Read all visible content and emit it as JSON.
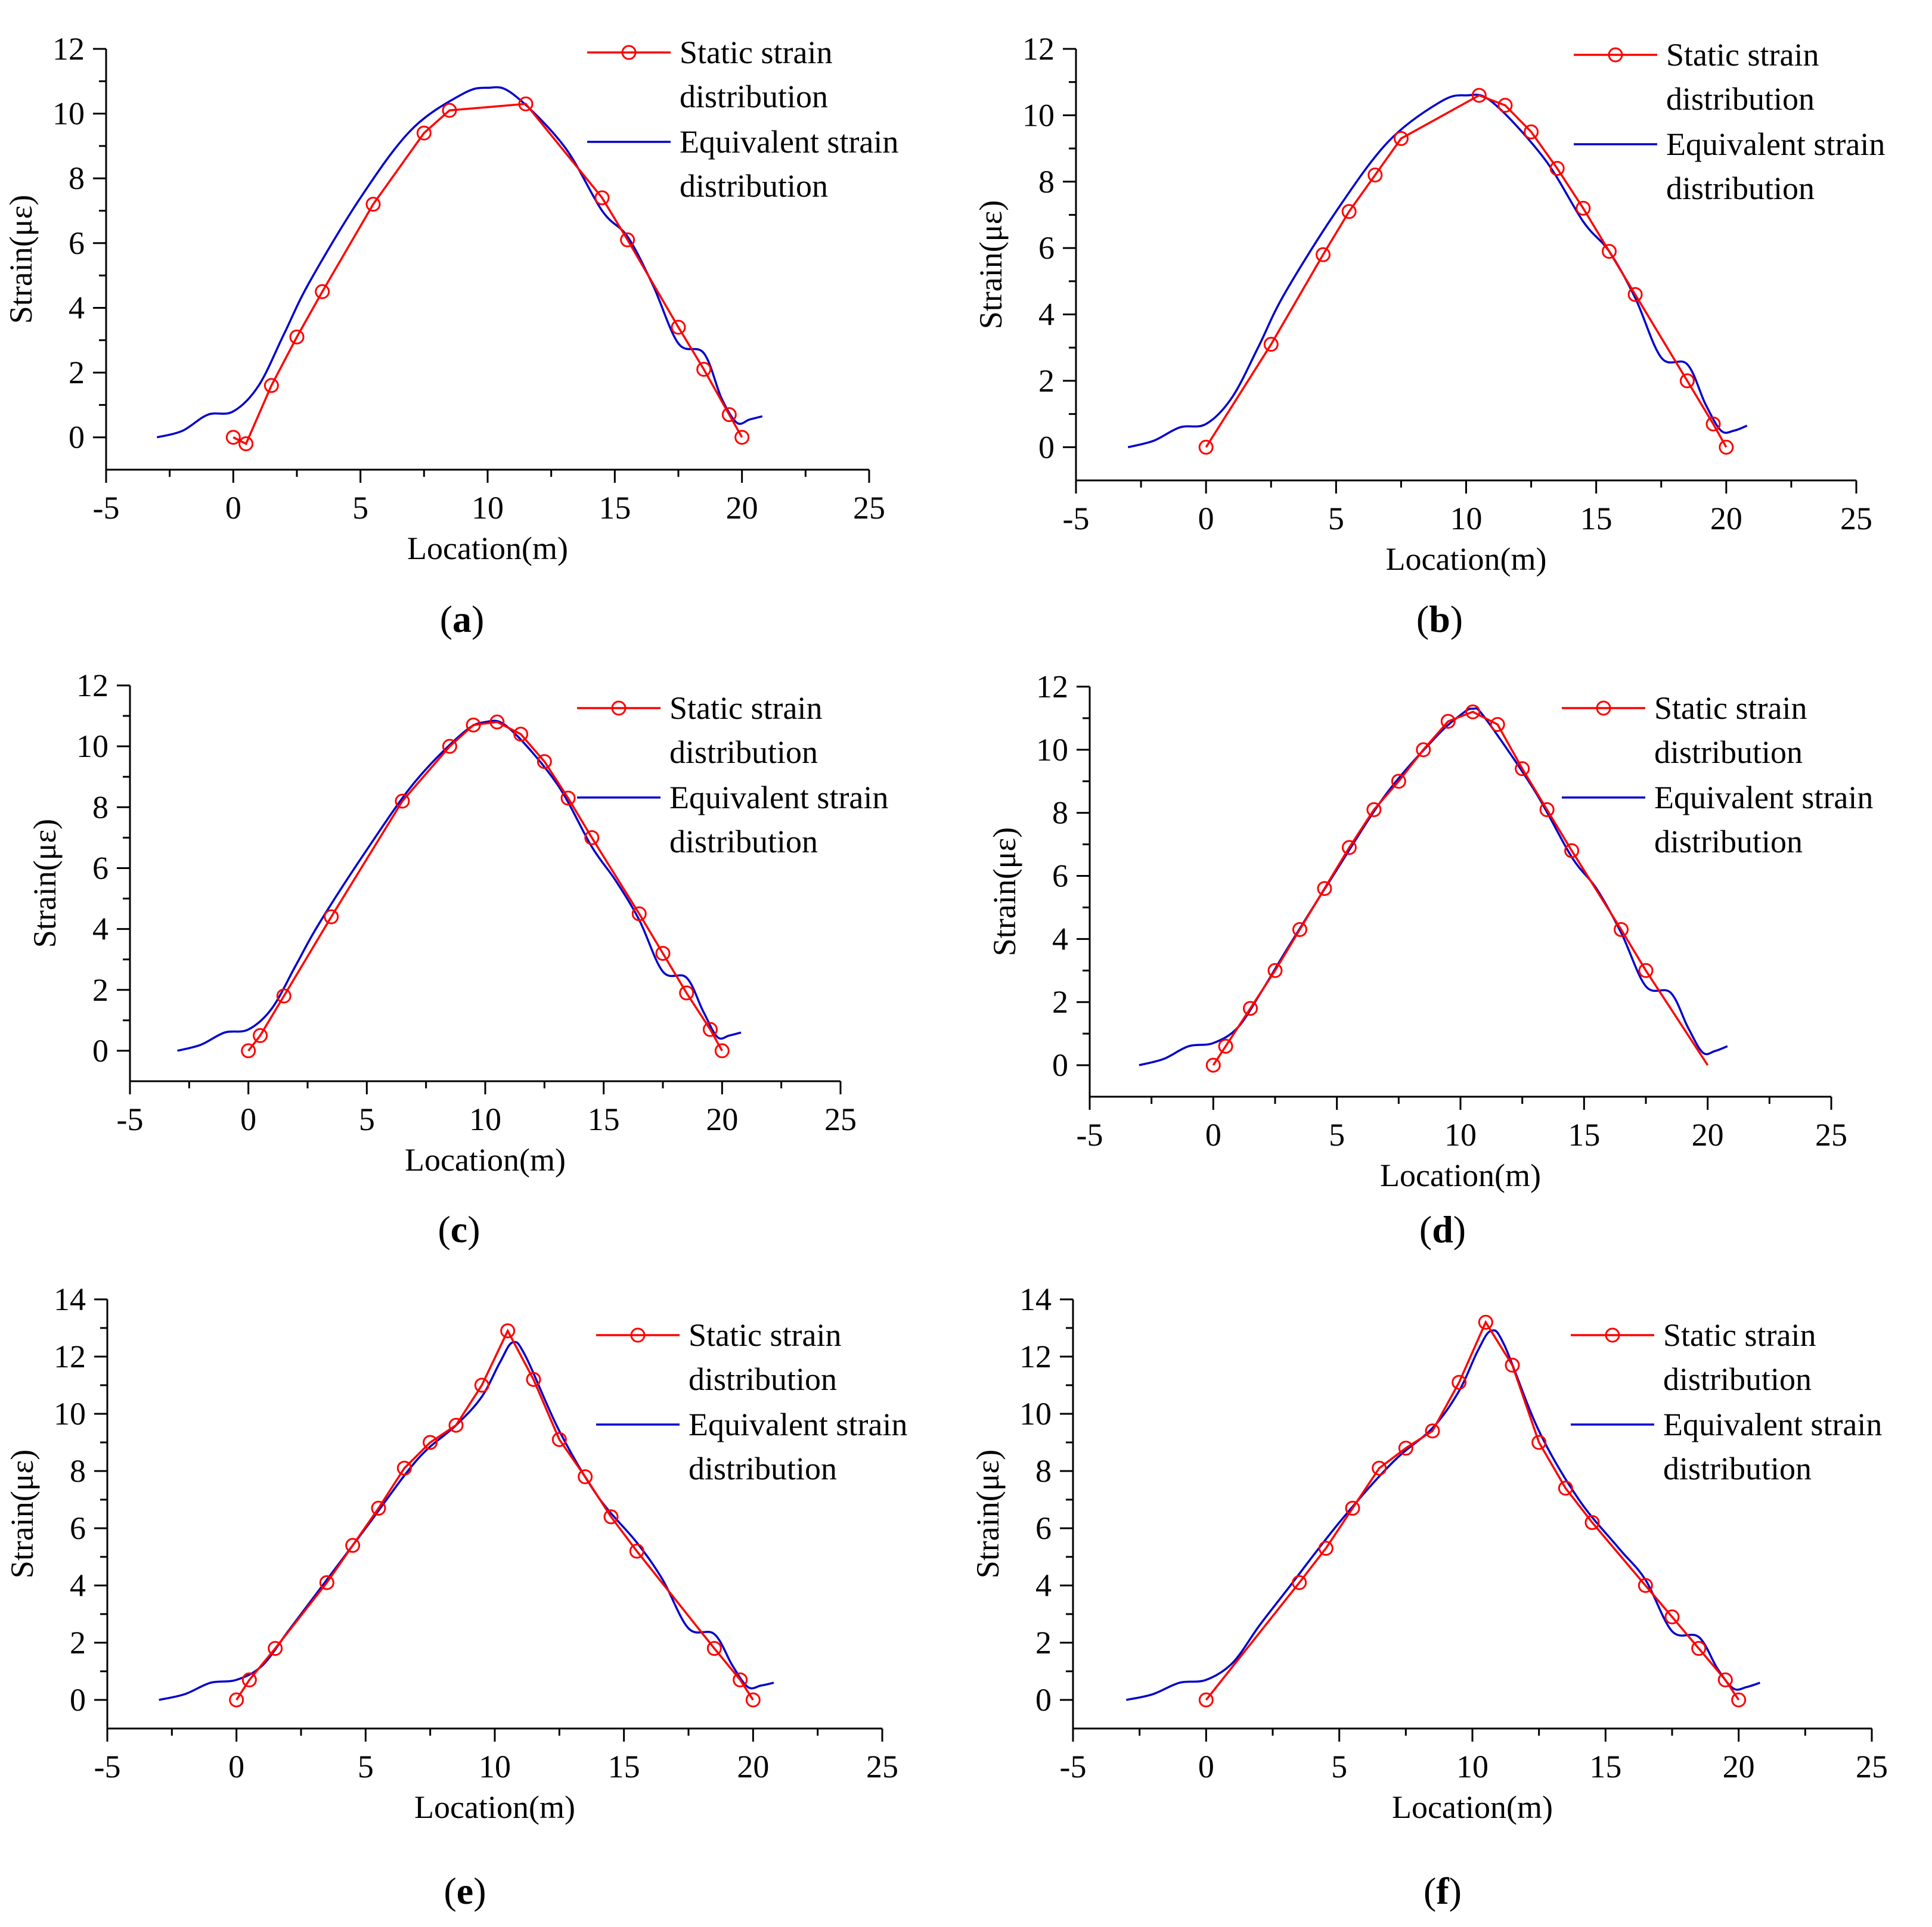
{
  "figure": {
    "legend": {
      "static_label_line1": "Static strain",
      "static_label_line2": "distribution",
      "equivalent_label_line1": "Equivalent strain",
      "equivalent_label_line2": "distribution"
    },
    "colors": {
      "static": "#ff0000",
      "equivalent": "#0000cc",
      "axis": "#000000"
    }
  },
  "chart_data": [
    {
      "id": "a",
      "caption": "a",
      "type": "line",
      "xlabel": "Location(m)",
      "ylabel": "Strain(με)",
      "xlim": [
        -5,
        25
      ],
      "ylim": [
        -1,
        12
      ],
      "xticks": [
        -5,
        0,
        5,
        10,
        15,
        20,
        25
      ],
      "xtick_labels": [
        "-5",
        "0",
        "5",
        "10",
        "15",
        "20",
        "25"
      ],
      "yticks": [
        0,
        2,
        4,
        6,
        8,
        10,
        12
      ],
      "ytick_labels": [
        "0",
        "2",
        "4",
        "6",
        "8",
        "10",
        "12"
      ],
      "series": [
        {
          "name": "Static strain distribution",
          "x": [
            0,
            0.5,
            1.5,
            2.5,
            3.5,
            5.5,
            7.5,
            8.5,
            11.5,
            14.5,
            15.5,
            17.5,
            18.5,
            19.5,
            20
          ],
          "y": [
            0,
            -0.2,
            1.6,
            3.1,
            4.5,
            7.2,
            9.4,
            10.1,
            10.3,
            7.4,
            6.1,
            3.4,
            2.1,
            0.7,
            0
          ]
        },
        {
          "name": "Equivalent strain distribution",
          "x": [
            -3,
            -2,
            -1,
            0,
            1,
            2,
            3,
            5,
            7,
            9,
            10,
            11,
            13,
            14.5,
            15.5,
            16.5,
            17.5,
            18.5,
            19.2,
            19.8,
            20.3,
            20.8
          ],
          "y": [
            0,
            0.2,
            0.7,
            0.8,
            1.6,
            3.2,
            4.8,
            7.4,
            9.5,
            10.6,
            10.8,
            10.6,
            9.0,
            7.0,
            6.2,
            4.7,
            2.9,
            2.6,
            1.2,
            0.45,
            0.55,
            0.65
          ]
        }
      ]
    },
    {
      "id": "b",
      "caption": "b",
      "type": "line",
      "xlabel": "Location(m)",
      "ylabel": "Strain(με)",
      "xlim": [
        -5,
        25
      ],
      "ylim": [
        -1,
        12
      ],
      "xticks": [
        -5,
        0,
        5,
        10,
        15,
        20,
        25
      ],
      "xtick_labels": [
        "-5",
        "0",
        "5",
        "10",
        "15",
        "20",
        "25"
      ],
      "yticks": [
        0,
        2,
        4,
        6,
        8,
        10,
        12
      ],
      "ytick_labels": [
        "0",
        "2",
        "4",
        "6",
        "8",
        "10",
        "12"
      ],
      "series": [
        {
          "name": "Static strain distribution",
          "x": [
            0,
            2.5,
            4.5,
            5.5,
            6.5,
            7.5,
            10.5,
            11.5,
            12.5,
            13.5,
            14.5,
            15.5,
            16.5,
            18.5,
            19.5,
            20
          ],
          "y": [
            0,
            3.1,
            5.8,
            7.1,
            8.2,
            9.3,
            10.6,
            10.3,
            9.5,
            8.4,
            7.2,
            5.9,
            4.6,
            2.0,
            0.7,
            0
          ]
        },
        {
          "name": "Equivalent strain distribution",
          "x": [
            -3,
            -2,
            -1,
            0,
            1,
            2,
            3,
            5,
            7,
            9,
            10,
            11,
            13,
            14.5,
            15.5,
            16.5,
            17.5,
            18.5,
            19.2,
            19.8,
            20.3,
            20.8
          ],
          "y": [
            0,
            0.2,
            0.6,
            0.7,
            1.5,
            3.0,
            4.6,
            7.1,
            9.2,
            10.4,
            10.6,
            10.4,
            8.7,
            6.8,
            5.9,
            4.5,
            2.7,
            2.5,
            1.3,
            0.5,
            0.5,
            0.65
          ]
        }
      ]
    },
    {
      "id": "c",
      "caption": "c",
      "type": "line",
      "xlabel": "Location(m)",
      "ylabel": "Strain(με)",
      "xlim": [
        -5,
        25
      ],
      "ylim": [
        -1,
        12
      ],
      "xticks": [
        -5,
        0,
        5,
        10,
        15,
        20,
        25
      ],
      "xtick_labels": [
        "-5",
        "0",
        "5",
        "10",
        "15",
        "20",
        "25"
      ],
      "yticks": [
        0,
        2,
        4,
        6,
        8,
        10,
        12
      ],
      "ytick_labels": [
        "0",
        "2",
        "4",
        "6",
        "8",
        "10",
        "12"
      ],
      "series": [
        {
          "name": "Static strain distribution",
          "x": [
            0,
            0.5,
            1.5,
            3.5,
            6.5,
            8.5,
            9.5,
            10.5,
            11.5,
            12.5,
            13.5,
            14.5,
            16.5,
            17.5,
            18.5,
            19.5,
            20
          ],
          "y": [
            0,
            0.5,
            1.8,
            4.4,
            8.2,
            10.0,
            10.7,
            10.8,
            10.4,
            9.5,
            8.3,
            7.0,
            4.5,
            3.2,
            1.9,
            0.7,
            0
          ]
        },
        {
          "name": "Equivalent strain distribution",
          "x": [
            -3,
            -2,
            -1,
            0,
            1,
            2,
            3,
            5,
            7,
            9,
            10,
            11,
            13,
            14.5,
            15.5,
            16.5,
            17.5,
            18.5,
            19.2,
            19.8,
            20.3,
            20.8
          ],
          "y": [
            0,
            0.2,
            0.6,
            0.7,
            1.4,
            2.8,
            4.2,
            6.6,
            8.8,
            10.4,
            10.8,
            10.6,
            8.8,
            6.7,
            5.6,
            4.3,
            2.6,
            2.4,
            1.3,
            0.45,
            0.5,
            0.6
          ]
        }
      ]
    },
    {
      "id": "d",
      "caption": "d",
      "type": "line",
      "xlabel": "Location(m)",
      "ylabel": "Strain(με)",
      "xlim": [
        -5,
        25
      ],
      "ylim": [
        -1,
        12
      ],
      "xticks": [
        -5,
        0,
        5,
        10,
        15,
        20,
        25
      ],
      "xtick_labels": [
        "-5",
        "0",
        "5",
        "10",
        "15",
        "20",
        "25"
      ],
      "yticks": [
        0,
        2,
        4,
        6,
        8,
        10,
        12
      ],
      "ytick_labels": [
        "0",
        "2",
        "4",
        "6",
        "8",
        "10",
        "12"
      ],
      "series": [
        {
          "name": "Static strain distribution",
          "x": [
            0,
            0.5,
            1.5,
            2.5,
            3.5,
            4.5,
            5.5,
            6.5,
            7.5,
            8.5,
            9.5,
            10.5,
            11.5,
            12.5,
            13.5,
            14.5,
            16.5,
            17.5,
            20
          ],
          "y": [
            0,
            0.6,
            1.8,
            3.0,
            4.3,
            5.6,
            6.9,
            8.1,
            9.0,
            10.0,
            10.9,
            11.2,
            10.8,
            9.4,
            8.1,
            6.8,
            4.3,
            3.0,
            0
          ]
        },
        {
          "name": "Equivalent strain distribution",
          "x": [
            -3,
            -2,
            -1,
            0,
            1,
            2,
            3,
            5,
            7,
            9,
            10,
            10.5,
            11,
            13,
            14.5,
            15.5,
            16.5,
            17.5,
            18.5,
            19.2,
            19.8,
            20.3,
            20.8
          ],
          "y": [
            0,
            0.2,
            0.6,
            0.7,
            1.2,
            2.4,
            3.7,
            6.2,
            8.6,
            10.4,
            11.1,
            11.3,
            11.0,
            8.7,
            6.6,
            5.6,
            4.2,
            2.5,
            2.3,
            1.2,
            0.4,
            0.45,
            0.6
          ]
        }
      ]
    },
    {
      "id": "e",
      "caption": "e",
      "type": "line",
      "xlabel": "Location(m)",
      "ylabel": "Strain(με)",
      "xlim": [
        -5,
        25
      ],
      "ylim": [
        -1,
        14
      ],
      "xticks": [
        -5,
        0,
        5,
        10,
        15,
        20,
        25
      ],
      "xtick_labels": [
        "-5",
        "0",
        "5",
        "10",
        "15",
        "20",
        "25"
      ],
      "yticks": [
        0,
        2,
        4,
        6,
        8,
        10,
        12,
        14
      ],
      "ytick_labels": [
        "0",
        "2",
        "4",
        "6",
        "8",
        "10",
        "12",
        "14"
      ],
      "series": [
        {
          "name": "Static strain distribution",
          "x": [
            0,
            0.5,
            1.5,
            3.5,
            4.5,
            5.5,
            6.5,
            7.5,
            8.5,
            9.5,
            10.5,
            11.5,
            12.5,
            13.5,
            14.5,
            15.5,
            18.5,
            19.5,
            20
          ],
          "y": [
            0,
            0.7,
            1.8,
            4.1,
            5.4,
            6.7,
            8.1,
            9.0,
            9.6,
            11.0,
            12.9,
            11.2,
            9.1,
            7.8,
            6.4,
            5.2,
            1.8,
            0.7,
            0
          ]
        },
        {
          "name": "Equivalent strain distribution",
          "x": [
            -3,
            -2,
            -1,
            0,
            1,
            2,
            3,
            5,
            7,
            8.5,
            9.5,
            10.2,
            10.7,
            11.2,
            12.5,
            14,
            15.5,
            16.5,
            17.5,
            18.5,
            19.2,
            19.8,
            20.3,
            20.8
          ],
          "y": [
            0,
            0.2,
            0.6,
            0.7,
            1.2,
            2.4,
            3.6,
            6.0,
            8.4,
            9.6,
            10.6,
            11.8,
            12.5,
            12.0,
            9.4,
            7.1,
            5.5,
            4.2,
            2.5,
            2.3,
            1.2,
            0.45,
            0.5,
            0.6
          ]
        }
      ]
    },
    {
      "id": "f",
      "caption": "f",
      "type": "line",
      "xlabel": "Location(m)",
      "ylabel": "Strain(με)",
      "xlim": [
        -5,
        25
      ],
      "ylim": [
        -1,
        14
      ],
      "xticks": [
        -5,
        0,
        5,
        10,
        15,
        20,
        25
      ],
      "xtick_labels": [
        "-5",
        "0",
        "5",
        "10",
        "15",
        "20",
        "25"
      ],
      "yticks": [
        0,
        2,
        4,
        6,
        8,
        10,
        12,
        14
      ],
      "ytick_labels": [
        "0",
        "2",
        "4",
        "6",
        "8",
        "10",
        "12",
        "14"
      ],
      "series": [
        {
          "name": "Static strain distribution",
          "x": [
            0,
            3.5,
            4.5,
            5.5,
            6.5,
            7.5,
            8.5,
            9.5,
            10.5,
            11.5,
            12.5,
            13.5,
            14.5,
            16.5,
            17.5,
            18.5,
            19.5,
            20
          ],
          "y": [
            0,
            4.1,
            5.3,
            6.7,
            8.1,
            8.8,
            9.4,
            11.1,
            13.2,
            11.7,
            9.0,
            7.4,
            6.2,
            4.0,
            2.9,
            1.8,
            0.7,
            0
          ]
        },
        {
          "name": "Equivalent strain distribution",
          "x": [
            -3,
            -2,
            -1,
            0,
            1,
            2,
            3,
            5,
            7,
            8.5,
            9.5,
            10.2,
            10.7,
            11.2,
            12.5,
            14,
            15.5,
            16.5,
            17.5,
            18.5,
            19.2,
            19.8,
            20.3,
            20.8
          ],
          "y": [
            0,
            0.2,
            0.6,
            0.7,
            1.3,
            2.6,
            3.8,
            6.2,
            8.3,
            9.5,
            10.8,
            12.2,
            12.9,
            12.4,
            9.4,
            7.0,
            5.3,
            4.2,
            2.4,
            2.2,
            1.1,
            0.4,
            0.45,
            0.6
          ]
        }
      ]
    }
  ]
}
